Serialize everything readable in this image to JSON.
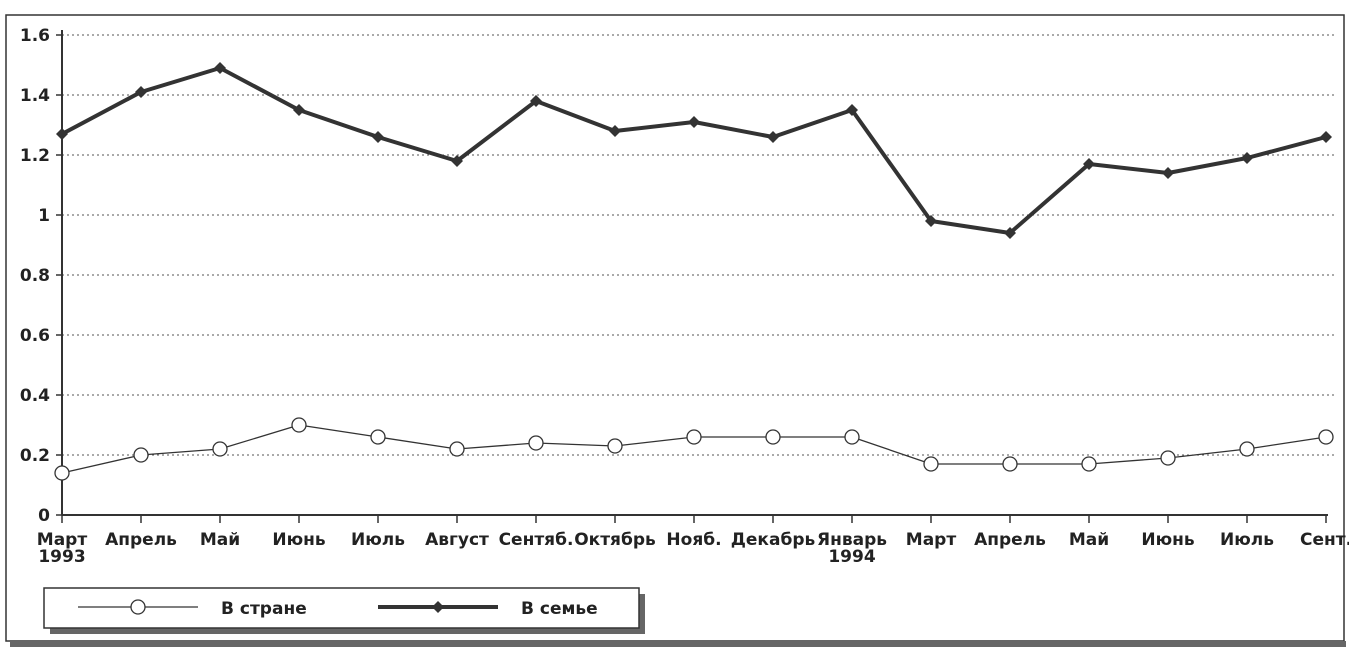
{
  "chart_data": {
    "type": "line",
    "categories": [
      "Март\n1993",
      "Апрель",
      "Май",
      "Июнь",
      "Июль",
      "Август",
      "Сентяб.",
      "Октябрь",
      "Нояб.",
      "Декабрь",
      "Январь\n1994",
      "Март",
      "Апрель",
      "Май",
      "Июнь",
      "Июль",
      "Сент."
    ],
    "series": [
      {
        "name": "В стране",
        "color": "#333333",
        "marker": "circle",
        "values": [
          0.14,
          0.2,
          0.22,
          0.3,
          0.26,
          0.22,
          0.24,
          0.23,
          0.26,
          0.26,
          0.26,
          0.17,
          0.17,
          0.17,
          0.19,
          0.22,
          0.26
        ]
      },
      {
        "name": "В семье",
        "color": "#333333",
        "marker": "diamond",
        "values": [
          1.27,
          1.41,
          1.49,
          1.35,
          1.26,
          1.18,
          1.38,
          1.28,
          1.31,
          1.26,
          1.35,
          0.98,
          0.94,
          1.17,
          1.14,
          1.19,
          1.26
        ]
      }
    ],
    "ylim": [
      0,
      1.6
    ],
    "yticks": [
      0,
      0.2,
      0.4,
      0.6,
      0.8,
      1,
      1.2,
      1.4,
      1.6
    ],
    "grid": true,
    "legend": "bottom-left"
  }
}
